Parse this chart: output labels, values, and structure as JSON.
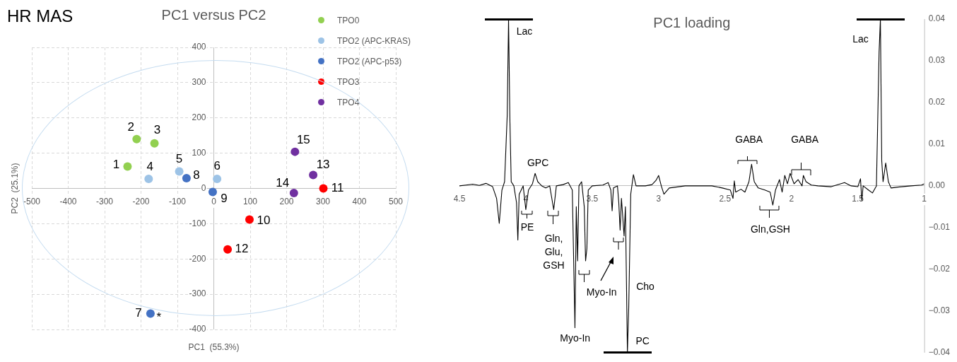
{
  "chart_data": [
    {
      "type": "scatter",
      "title": "PC1 versus PC2",
      "xlabel": "PC1  (55.3%)",
      "ylabel": "PC2  (25.1%)",
      "xlim": [
        -500,
        500
      ],
      "xticks": [
        -500,
        -400,
        -300,
        -200,
        -100,
        0,
        100,
        200,
        300,
        400,
        500
      ],
      "ylim": [
        -400,
        400
      ],
      "yticks": [
        -400,
        -300,
        -200,
        -100,
        0,
        100,
        200,
        300,
        400
      ],
      "grid": true,
      "legend": "top right",
      "marker": "circle",
      "annotations": [
        "HR MAS",
        {
          "text": "1",
          "x": -237,
          "y": 62
        },
        {
          "text": "2",
          "x": -212,
          "y": 140
        },
        {
          "text": "3",
          "x": -163,
          "y": 128
        },
        {
          "text": "4",
          "x": -179,
          "y": 27
        },
        {
          "text": "5",
          "x": -95,
          "y": 48
        },
        {
          "text": "6",
          "x": 9,
          "y": 27
        },
        {
          "text": "7",
          "x": -174,
          "y": -355
        },
        {
          "text": "8",
          "x": -75,
          "y": 29
        },
        {
          "text": "9",
          "x": -3,
          "y": -10
        },
        {
          "text": "10",
          "x": 98,
          "y": -88
        },
        {
          "text": "11",
          "x": 301,
          "y": 0
        },
        {
          "text": "12",
          "x": 38,
          "y": -173
        },
        {
          "text": "13",
          "x": 273,
          "y": 38
        },
        {
          "text": "14",
          "x": 220,
          "y": -13
        },
        {
          "text": "15",
          "x": 223,
          "y": 104
        },
        {
          "text": "*",
          "x": -174,
          "y": -355
        }
      ],
      "series": [
        {
          "name": "TPO0",
          "color": "#92d050",
          "x": [
            -237,
            -212,
            -163
          ],
          "values": [
            62,
            140,
            128
          ]
        },
        {
          "name": "TPO2 (APC-KRAS)",
          "color": "#9dc3e6",
          "x": [
            -179,
            -95,
            9
          ],
          "values": [
            27,
            48,
            27
          ]
        },
        {
          "name": "TPO2 (APC-p53)",
          "color": "#4472c4",
          "x": [
            -174,
            -75,
            -3
          ],
          "values": [
            -355,
            29,
            -10
          ]
        },
        {
          "name": "TPO3",
          "color": "#ff0000",
          "x": [
            98,
            301,
            38
          ],
          "values": [
            -88,
            0,
            -173
          ]
        },
        {
          "name": "TPO4",
          "color": "#7030a0",
          "x": [
            273,
            220,
            223
          ],
          "values": [
            38,
            -13,
            104
          ]
        }
      ]
    },
    {
      "type": "line",
      "title": "PC1 loading",
      "xlim": [
        4.5,
        1
      ],
      "xticks": [
        4.5,
        4,
        3.5,
        3,
        2.5,
        2,
        1.5,
        1
      ],
      "ylim": [
        -0.04,
        0.04
      ],
      "yticks": [
        {
          "value": -0.04,
          "label": "−0.04"
        },
        {
          "value": -0.03,
          "label": "−0.03"
        },
        {
          "value": -0.02,
          "label": "−0.02"
        },
        {
          "value": -0.01,
          "label": "−0.01"
        },
        {
          "value": 0,
          "label": "0.00"
        },
        0.01,
        0.02,
        0.03,
        0.04
      ],
      "annotations": [
        "Lac",
        "Lac",
        "GPC",
        "GABA",
        "GABA",
        "PE",
        "Gln,\nGlu,\nGSH",
        "Myo-In",
        "Myo-In",
        "Cho",
        "PC",
        "Gln,GSH"
      ],
      "series": [
        {
          "color": "#000000",
          "x": [
            4.5,
            4.45,
            4.4,
            4.35,
            4.3,
            4.25,
            4.22,
            4.2,
            4.18,
            4.16,
            4.14,
            4.13,
            4.12,
            4.11,
            4.09,
            4.07,
            4.06,
            4.05,
            4.02,
            4.0,
            3.98,
            3.95,
            3.93,
            3.91,
            3.88,
            3.85,
            3.82,
            3.79,
            3.77,
            3.72,
            3.68,
            3.65,
            3.63,
            3.62,
            3.61,
            3.6,
            3.58,
            3.56,
            3.55,
            3.54,
            3.53,
            3.5,
            3.42,
            3.38,
            3.36,
            3.35,
            3.34,
            3.31,
            3.3,
            3.29,
            3.28,
            3.26,
            3.25,
            3.235,
            3.225,
            3.21,
            3.19,
            3.17,
            3.1,
            3.05,
            3.02,
            3.0,
            2.98,
            2.96,
            2.92,
            2.8,
            2.6,
            2.52,
            2.46,
            2.44,
            2.43,
            2.42,
            2.38,
            2.35,
            2.32,
            2.3,
            2.28,
            2.25,
            2.2,
            2.16,
            2.14,
            2.12,
            2.09,
            2.07,
            2.05,
            2.03,
            2.01,
            1.98,
            1.95,
            1.92,
            1.91,
            1.89,
            1.85,
            1.8,
            1.7,
            1.6,
            1.55,
            1.5,
            1.48,
            1.47,
            1.46,
            1.42,
            1.39,
            1.36,
            1.34,
            1.33,
            1.32,
            1.31,
            1.29,
            1.27,
            1.25,
            1.2,
            1.1,
            1.02,
            1.0
          ],
          "values": [
            0,
            0.0002,
            0.0004,
            0.0001,
            0.0006,
            -0.0002,
            -0.003,
            -0.009,
            -0.001,
            0.001,
            0.017,
            0.04,
            0.016,
            0.001,
            0,
            -0.004,
            -0.013,
            -0.002,
            0,
            -0.0057,
            -0.001,
            0.0005,
            0.003,
            0.001,
            0,
            -0.0005,
            0,
            -0.0057,
            0,
            0.0003,
            0.0008,
            -0.001,
            -0.034,
            -0.005,
            -0.018,
            0,
            0.001,
            -0.005,
            -0.018,
            -0.015,
            -0.001,
            0,
            0.0002,
            0.0008,
            -0.001,
            -0.006,
            -0.0005,
            0,
            -0.004,
            -0.0106,
            -0.003,
            -0.012,
            -0.005,
            -0.04,
            -0.029,
            -0.002,
            0.0027,
            0,
            0,
            0.0003,
            0.0013,
            0.0025,
            0,
            -0.002,
            -0.0005,
            0,
            0,
            -0.0005,
            -0.001,
            -0.003,
            0.0012,
            -0.0015,
            -0.0008,
            -0.0015,
            0.001,
            0.0052,
            0.001,
            -0.0005,
            -0.001,
            -0.0015,
            -0.0046,
            -0.001,
            0.0015,
            -0.0015,
            0.0025,
            0.0005,
            0.003,
            0.0005,
            0.0015,
            0,
            0.0025,
            0.001,
            0.0002,
            0,
            -0.0002,
            0.0008,
            0,
            -0.0002,
            0.0017,
            -0.0035,
            0,
            -0.001,
            -0.0017,
            0,
            0.032,
            0.04,
            0.006,
            0.001,
            0.0055,
            0.001,
            -0.0005,
            -0.0003,
            0,
            0.0002,
            0.0005
          ]
        }
      ]
    }
  ]
}
